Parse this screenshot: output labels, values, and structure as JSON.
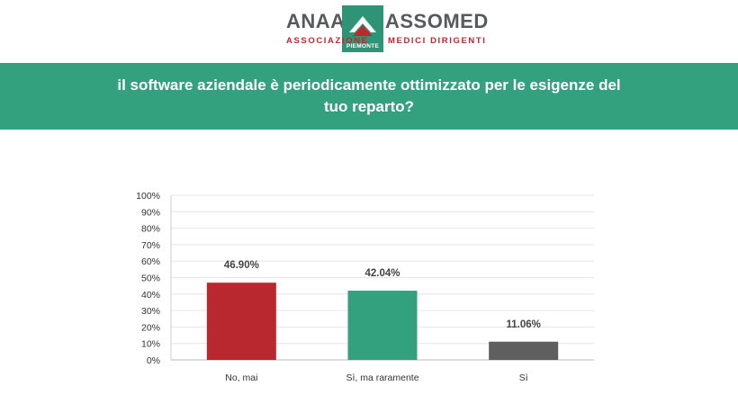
{
  "logo": {
    "left_word": "ANAAO",
    "right_word": "ASSOMED",
    "left_sub": "ASSOCIAZIONE",
    "right_sub": "MEDICI DIRIGENTI",
    "region": "PIEMONTE",
    "colors": {
      "gray": "#58595b",
      "red": "#c1272d",
      "green": "#2e9475"
    }
  },
  "header": {
    "title": "il software aziendale è periodicamente ottimizzato per le esigenze del tuo reparto?",
    "background": "#33a07e"
  },
  "chart_data": {
    "type": "bar",
    "categories": [
      "No, mai",
      "Sì, ma raramente",
      "Sì"
    ],
    "values": [
      46.9,
      42.04,
      11.06
    ],
    "data_labels": [
      "46.90%",
      "42.04%",
      "11.06%"
    ],
    "colors": [
      "#b8282e",
      "#33a07e",
      "#5f5f5f"
    ],
    "ylim": [
      0,
      100
    ],
    "yticks": [
      "0%",
      "10%",
      "20%",
      "30%",
      "40%",
      "50%",
      "60%",
      "70%",
      "80%",
      "90%",
      "100%"
    ],
    "grid": true,
    "legend": "none"
  }
}
